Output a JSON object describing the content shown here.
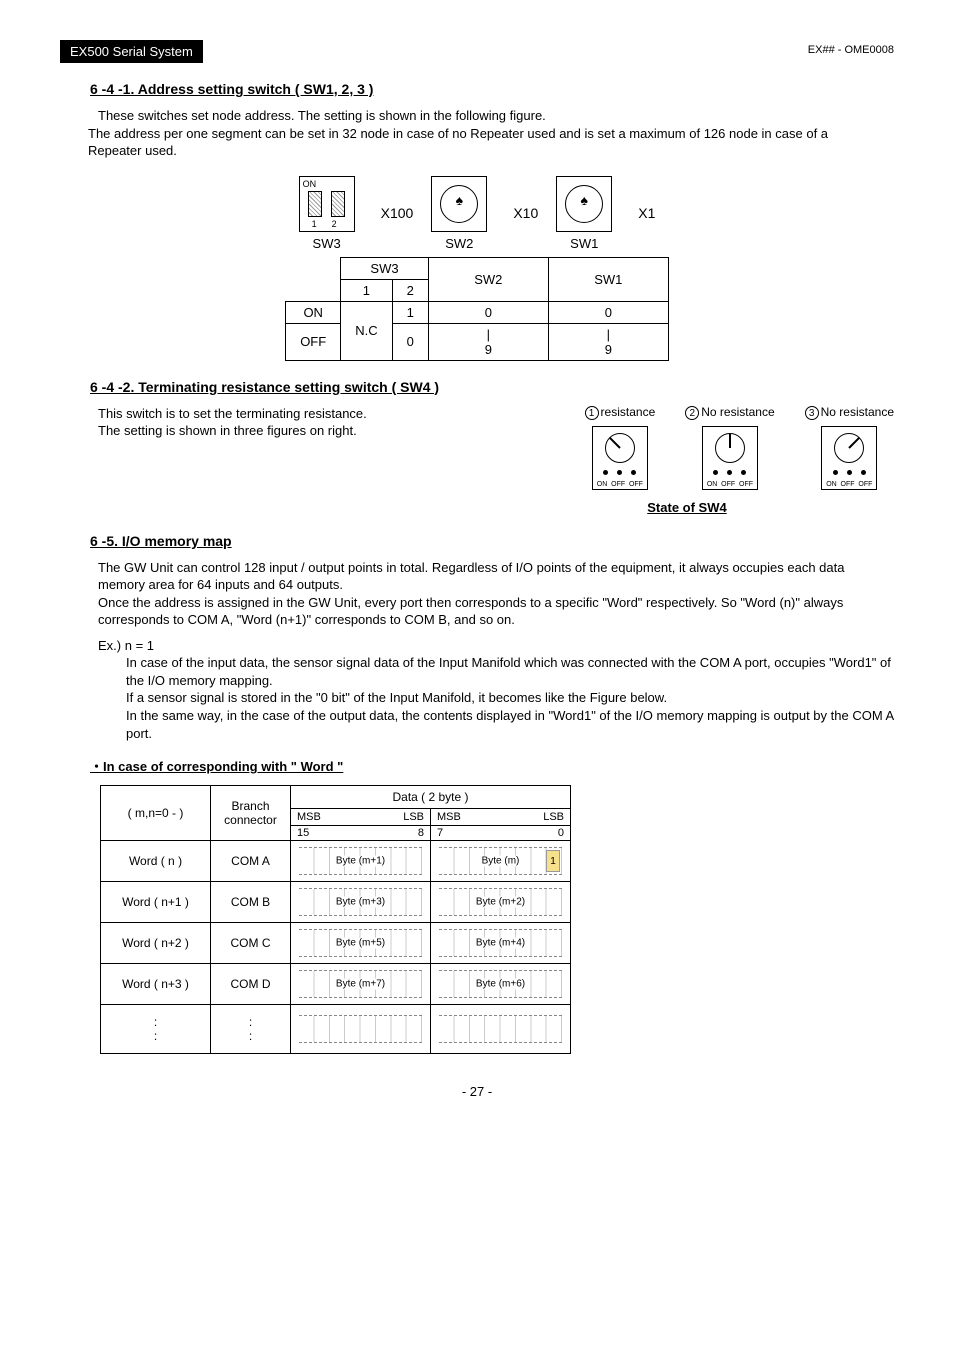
{
  "header": {
    "left": "EX500 Serial System",
    "right": "EX## - OME0008"
  },
  "sec641": {
    "title": "6 -4 -1. Address setting switch ( SW1, 2, 3 )",
    "p1": "These switches set node address. The setting is shown in the following figure.",
    "p2": "The address per one segment can be set in 32 node in case of no Repeater used and is set a maximum of 126 node in case of a Repeater used.",
    "dip_on": "ON",
    "dip_n1": "1",
    "dip_n2": "2",
    "x100": "X100",
    "x10": "X10",
    "x1": "X1",
    "sw3": "SW3",
    "sw2": "SW2",
    "sw1": "SW1",
    "table": {
      "h_sw3": "SW3",
      "h_sw3_1": "1",
      "h_sw3_2": "2",
      "h_sw2": "SW2",
      "h_sw1": "SW1",
      "r_on": "ON",
      "r_off": "OFF",
      "nc": "N.C",
      "on_v2": "1",
      "off_v2": "0",
      "sw2_on": "0",
      "sw2_off": "|\n9",
      "sw1_on": "0",
      "sw1_off": "|\n9"
    }
  },
  "sec642": {
    "title": "6 -4 -2. Terminating resistance setting switch ( SW4 )",
    "p1": "This switch is to set the terminating resistance.",
    "p2": "The setting is shown in three figures on right.",
    "opt1": "resistance",
    "opt2": "No  resistance",
    "opt3": "No  resistance",
    "n1": "1",
    "n2": "2",
    "n3": "3",
    "on": "ON",
    "off1": "OFF",
    "off2": "OFF",
    "state": "State of SW4"
  },
  "sec65": {
    "title": "6 -5. I/O memory map",
    "p1": "The GW Unit can control 128 input / output points in total. Regardless of I/O points of the equipment, it always occupies each data memory area for 64 inputs and 64 outputs.",
    "p2": "Once the address is assigned in the GW Unit, every port then corresponds to a specific \"Word\" respectively. So \"Word (n)\" always corresponds to COM A, \"Word (n+1)\" corresponds to COM B, and so on.",
    "ex_label": "Ex.) n = 1",
    "ex1": "In case of the input data, the sensor signal data of the Input Manifold which was connected with the COM A port, occupies \"Word1\" of the I/O memory mapping.",
    "ex2": "If a sensor signal is stored in the \"0 bit\" of the Input Manifold, it becomes like the Figure below.",
    "ex3": "In the same way, in the case of the output data, the contents displayed in \"Word1\" of the I/O memory mapping is output by the COM A port.",
    "sub": "・In case of corresponding with \" Word \"",
    "tbl": {
      "mn": "( m,n=0 - )",
      "branch": "Branch connector",
      "data": "Data ( 2 byte )",
      "msb1": "MSB",
      "lsb1": "LSB",
      "msb2": "MSB",
      "lsb2": "LSB",
      "n15": "15",
      "n8": "8",
      "n7": "7",
      "n0": "0",
      "rows": [
        {
          "w": "Word ( n )",
          "c": "COM A",
          "b1": "Byte (m+1)",
          "b2": "Byte (m)",
          "hl": "1"
        },
        {
          "w": "Word ( n+1 )",
          "c": "COM B",
          "b1": "Byte (m+3)",
          "b2": "Byte (m+2)"
        },
        {
          "w": "Word ( n+2 )",
          "c": "COM C",
          "b1": "Byte (m+5)",
          "b2": "Byte (m+4)"
        },
        {
          "w": "Word ( n+3 )",
          "c": "COM D",
          "b1": "Byte (m+7)",
          "b2": "Byte (m+6)"
        },
        {
          "w": ":\n:",
          "c": ":\n:",
          "b1": "",
          "b2": ""
        }
      ]
    }
  },
  "page_num": "- 27 -"
}
